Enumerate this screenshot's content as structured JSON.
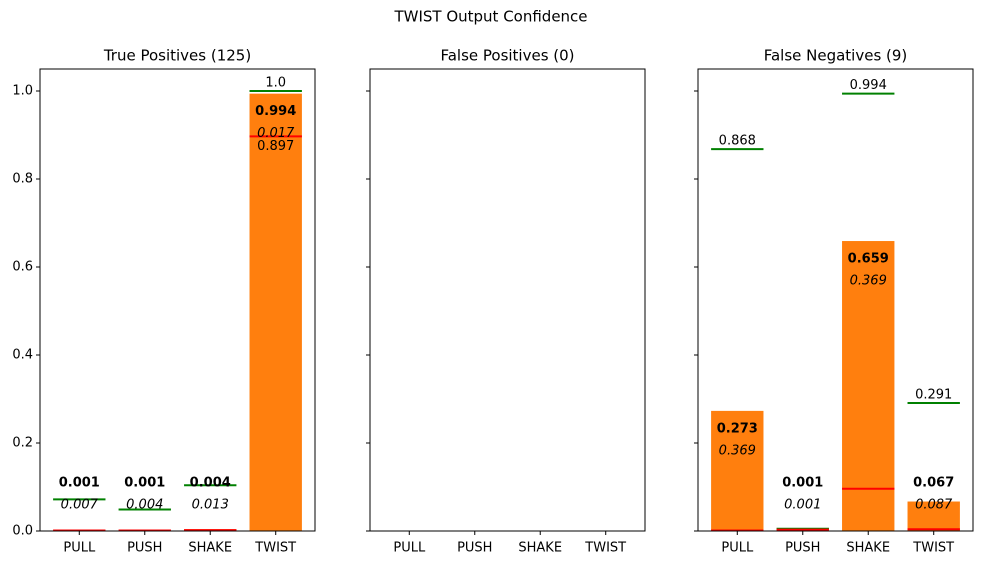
{
  "title": "TWIST Output Confidence",
  "chart_data": [
    {
      "type": "bar",
      "title": "True Positives (125)",
      "categories": [
        "PULL",
        "PUSH",
        "SHAKE",
        "TWIST"
      ],
      "values": [
        0.001,
        0.001,
        0.004,
        0.994
      ],
      "std": [
        0.007,
        0.004,
        0.013,
        0.017
      ],
      "max": [
        0.072,
        0.049,
        0.104,
        1.0
      ],
      "max_labels": [
        null,
        null,
        null,
        "1.0"
      ],
      "min": [
        0.001,
        0.001,
        0.002,
        0.897
      ],
      "min_labels": [
        null,
        null,
        null,
        "0.897"
      ],
      "color": "#ff7f0e",
      "max_color": "#008000",
      "min_color": "#ff0000",
      "ylim": [
        0,
        1.05
      ],
      "yticks": [
        {
          "value": 0,
          "label": "0.0"
        },
        0.2,
        0.4,
        0.6,
        0.8,
        {
          "value": 1,
          "label": "1.0"
        }
      ]
    },
    {
      "type": "bar",
      "title": "False Positives (0)",
      "categories": [
        "PULL",
        "PUSH",
        "SHAKE",
        "TWIST"
      ]
    },
    {
      "type": "bar",
      "title": "False Negatives (9)",
      "categories": [
        "PULL",
        "PUSH",
        "SHAKE",
        "TWIST"
      ],
      "values": [
        0.273,
        0.001,
        0.659,
        0.067
      ],
      "std": [
        0.369,
        0.001,
        0.369,
        0.087
      ],
      "max": [
        0.868,
        0.005,
        0.994,
        0.291
      ],
      "max_labels": [
        "0.868",
        null,
        "0.994",
        "0.291"
      ],
      "min": [
        0.001,
        0.003,
        0.096,
        0.004
      ],
      "min_labels": [
        null,
        null,
        null,
        null
      ],
      "color": "#ff7f0e",
      "max_color": "#008000",
      "min_color": "#ff0000"
    }
  ]
}
